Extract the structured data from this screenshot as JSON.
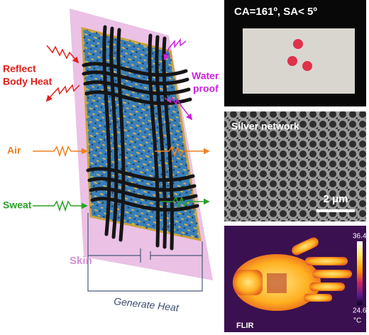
{
  "labels": {
    "reflect": [
      "Reflect",
      "Body Heat"
    ],
    "waterproof": [
      "Water",
      "proof"
    ],
    "air": "Air",
    "sweat": "Sweat",
    "skin": "Skin",
    "generate_heat": "Generate Heat"
  },
  "panels": {
    "contact_angle": "CA=161º, SA< 5º",
    "silver_network": "Silver network",
    "scale_bar": "2 μm",
    "thermal_max": "36.4",
    "thermal_min": "24.6",
    "thermal_unit": "°C",
    "camera": "FLIR"
  }
}
